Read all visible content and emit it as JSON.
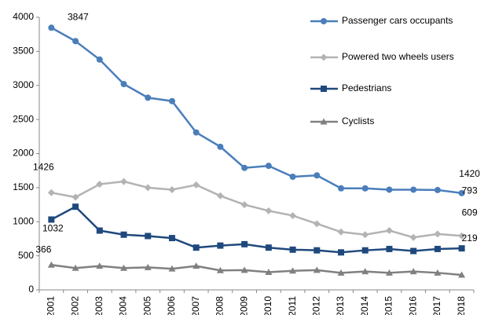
{
  "chart_data": {
    "type": "line",
    "categories": [
      "2001",
      "2002",
      "2003",
      "2004",
      "2005",
      "2006",
      "2007",
      "2008",
      "2009",
      "2010",
      "2011",
      "2012",
      "2013",
      "2014",
      "2015",
      "2016",
      "2017",
      "2018"
    ],
    "series": [
      {
        "name": "Passenger cars occupants",
        "color": "#4a7ebb",
        "marker": "circle",
        "values": [
          3847,
          3650,
          3380,
          3020,
          2820,
          2770,
          2310,
          2100,
          1790,
          1820,
          1660,
          1680,
          1490,
          1490,
          1470,
          1470,
          1465,
          1420
        ]
      },
      {
        "name": "Powered two wheels users",
        "color": "#b3b3b3",
        "marker": "diamond",
        "values": [
          1426,
          1360,
          1550,
          1590,
          1500,
          1470,
          1540,
          1380,
          1250,
          1160,
          1090,
          970,
          850,
          810,
          870,
          770,
          820,
          793
        ]
      },
      {
        "name": "Pedestrians",
        "color": "#1f497d",
        "marker": "square",
        "values": [
          1032,
          1220,
          870,
          810,
          790,
          760,
          620,
          650,
          670,
          620,
          590,
          580,
          550,
          580,
          600,
          570,
          600,
          609
        ]
      },
      {
        "name": "Cyclists",
        "color": "#808080",
        "marker": "triangle",
        "values": [
          366,
          320,
          350,
          320,
          330,
          310,
          350,
          285,
          290,
          260,
          280,
          290,
          250,
          270,
          250,
          270,
          250,
          219
        ]
      }
    ],
    "ylim": [
      0,
      4000
    ],
    "yticks": [
      0,
      500,
      1000,
      1500,
      2000,
      2500,
      3000,
      3500,
      4000
    ],
    "grid": false
  }
}
